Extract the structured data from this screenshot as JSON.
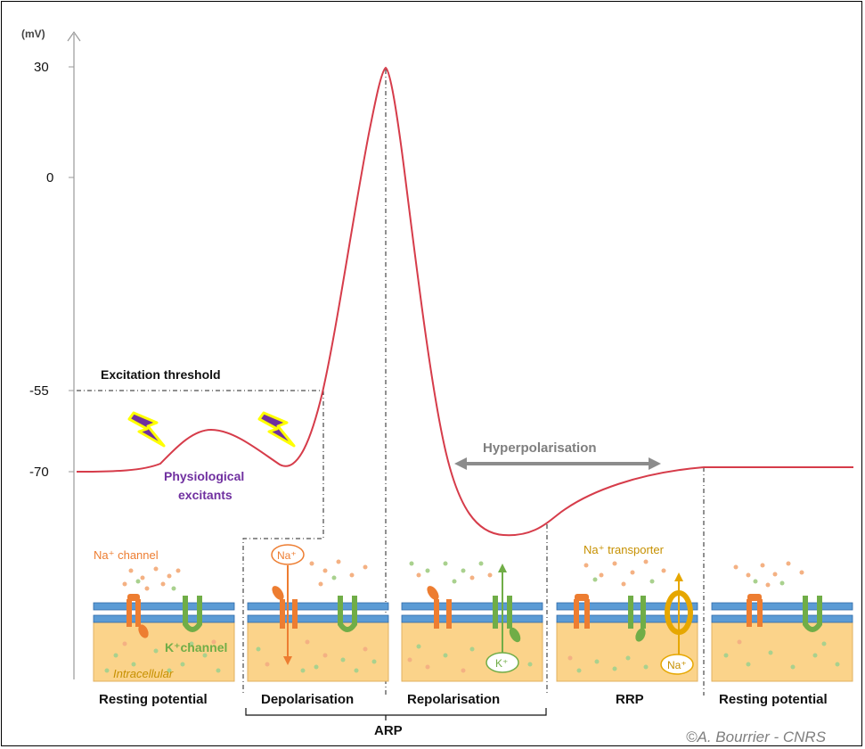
{
  "axis": {
    "unit": "(mV)",
    "ticks": [
      {
        "label": "30",
        "value": 30
      },
      {
        "label": "0",
        "value": 0
      },
      {
        "label": "-55",
        "value": -55
      },
      {
        "label": "-70",
        "value": -70
      }
    ]
  },
  "labels": {
    "threshold": "Excitation threshold",
    "excitants_line1": "Physiological",
    "excitants_line2": "excitants",
    "hyperpolarisation": "Hyperpolarisation",
    "na_channel": "Na⁺ channel",
    "k_channel": "K⁺channel",
    "intracellular": "Intracellular",
    "na_transporter": "Na⁺ transporter",
    "na_ion": "Na⁺",
    "k_ion": "K⁺",
    "credit": "©A. Bourrier - CNRS"
  },
  "phases": [
    "Resting potential",
    "Depolarisation",
    "Repolarisation",
    "RRP",
    "Resting potential"
  ],
  "brace_label": "ARP",
  "colors": {
    "curve": "#d63c4a",
    "membrane": "#5b9bd5",
    "cytoplasm": "#fbd38a",
    "na": "#ed7d31",
    "k": "#70ad47",
    "transporter": "#e6a700",
    "excitant": "#7030a0",
    "bolt_fill": "#7030a0",
    "bolt_glow": "#ffff00",
    "arrow_gray": "#8c8c8c"
  }
}
